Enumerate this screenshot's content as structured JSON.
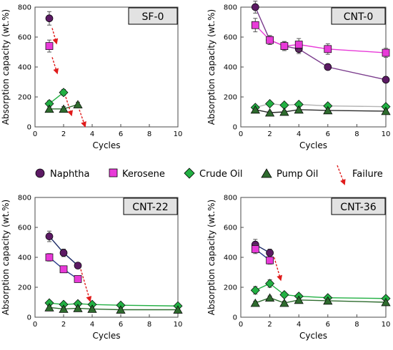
{
  "colors": {
    "naphtha": "#5c1a64",
    "kerosene": "#e83ad8",
    "crude_oil": "#22b043",
    "pump_oil": "#2e6b2e",
    "failure": "#e01b1b",
    "title_box": "#e2e2e2"
  },
  "legend": {
    "naphtha": "Naphtha",
    "kerosene": "Kerosene",
    "crude_oil": "Crude Oil",
    "pump_oil": "Pump Oil",
    "failure": "Failure"
  },
  "chart_data": [
    {
      "type": "line",
      "title": "SF-0",
      "xlabel": "Cycles",
      "ylabel": "Absorption capacity (wt.%)",
      "xlim": [
        0,
        10
      ],
      "ylim": [
        0,
        800
      ],
      "xticks": [
        0,
        2,
        4,
        6,
        8,
        10
      ],
      "yticks": [
        0,
        200,
        400,
        600,
        800
      ],
      "series": [
        {
          "name": "Naphtha",
          "key": "naphtha",
          "marker": "circle",
          "line": "#5c1a64",
          "x": [
            1
          ],
          "y": [
            725
          ],
          "err": [
            45
          ]
        },
        {
          "name": "Kerosene",
          "key": "kerosene",
          "marker": "square",
          "line": "#e83ad8",
          "x": [
            1
          ],
          "y": [
            540
          ],
          "err": [
            40
          ]
        },
        {
          "name": "Crude Oil",
          "key": "crude_oil",
          "marker": "diamond",
          "line": "#22b043",
          "x": [
            1,
            2
          ],
          "y": [
            155,
            230
          ],
          "err": [
            20,
            20
          ]
        },
        {
          "name": "Pump Oil",
          "key": "pump_oil",
          "marker": "triangle",
          "line": "#2e6b2e",
          "x": [
            1,
            2,
            3
          ],
          "y": [
            120,
            120,
            150
          ],
          "err": [
            15,
            15,
            15
          ]
        }
      ],
      "failures": [
        {
          "from": [
            1.2,
            660
          ],
          "to": [
            1.5,
            560
          ]
        },
        {
          "from": [
            1.2,
            465
          ],
          "to": [
            1.55,
            360
          ]
        },
        {
          "from": [
            2.15,
            200
          ],
          "to": [
            2.55,
            80
          ]
        },
        {
          "from": [
            3.1,
            115
          ],
          "to": [
            3.5,
            5
          ]
        }
      ]
    },
    {
      "type": "line",
      "title": "CNT-0",
      "xlabel": "Cycles",
      "ylabel": "Absorption capacity (wt.%)",
      "xlim": [
        0,
        10
      ],
      "ylim": [
        0,
        800
      ],
      "xticks": [
        0,
        2,
        4,
        6,
        8,
        10
      ],
      "yticks": [
        0,
        200,
        400,
        600,
        800
      ],
      "series": [
        {
          "name": "Naphtha",
          "key": "naphtha",
          "marker": "circle",
          "line": "#7a3b8c",
          "x": [
            1,
            2,
            3,
            4,
            6,
            10
          ],
          "y": [
            800,
            580,
            540,
            520,
            400,
            315
          ],
          "err": [
            40,
            30,
            30,
            30,
            20,
            20
          ]
        },
        {
          "name": "Kerosene",
          "key": "kerosene",
          "marker": "square",
          "line": "#e83ad8",
          "x": [
            1,
            2,
            3,
            4,
            6,
            10
          ],
          "y": [
            680,
            580,
            540,
            550,
            520,
            495
          ],
          "err": [
            45,
            30,
            30,
            40,
            35,
            30
          ]
        },
        {
          "name": "Crude Oil",
          "key": "crude_oil",
          "marker": "diamond",
          "line": "#b4b4b4",
          "x": [
            1,
            2,
            3,
            4,
            6,
            10
          ],
          "y": [
            130,
            155,
            145,
            150,
            140,
            135
          ],
          "err": [
            10,
            10,
            10,
            10,
            10,
            10
          ]
        },
        {
          "name": "Pump Oil",
          "key": "pump_oil",
          "marker": "triangle",
          "line": "#2a2a2a",
          "x": [
            1,
            2,
            3,
            4,
            6,
            10
          ],
          "y": [
            115,
            95,
            100,
            115,
            110,
            105
          ],
          "err": [
            10,
            10,
            10,
            10,
            10,
            10
          ]
        }
      ],
      "failures": []
    },
    {
      "type": "line",
      "title": "CNT-22",
      "xlabel": "Cycles",
      "ylabel": "Absorption capacity (wt.%)",
      "xlim": [
        0,
        10
      ],
      "ylim": [
        0,
        800
      ],
      "xticks": [
        0,
        2,
        4,
        6,
        8,
        10
      ],
      "yticks": [
        0,
        200,
        400,
        600,
        800
      ],
      "series": [
        {
          "name": "Naphtha",
          "key": "naphtha",
          "marker": "circle",
          "line": "#1c2a66",
          "x": [
            1,
            2,
            3
          ],
          "y": [
            540,
            430,
            345
          ],
          "err": [
            35,
            25,
            15
          ]
        },
        {
          "name": "Kerosene",
          "key": "kerosene",
          "marker": "square",
          "line": "#2a3a8c",
          "x": [
            1,
            2,
            3
          ],
          "y": [
            400,
            320,
            255
          ],
          "err": [
            25,
            20,
            15
          ]
        },
        {
          "name": "Crude Oil",
          "key": "crude_oil",
          "marker": "diamond",
          "line": "#22b043",
          "x": [
            1,
            2,
            3,
            4,
            6,
            10
          ],
          "y": [
            95,
            85,
            90,
            85,
            80,
            75
          ],
          "err": [
            10,
            10,
            10,
            10,
            10,
            10
          ]
        },
        {
          "name": "Pump Oil",
          "key": "pump_oil",
          "marker": "triangle",
          "line": "#2e6b2e",
          "x": [
            1,
            2,
            3,
            4,
            6,
            10
          ],
          "y": [
            65,
            55,
            60,
            55,
            50,
            50
          ],
          "err": [
            8,
            8,
            8,
            8,
            8,
            8
          ]
        }
      ],
      "failures": [
        {
          "from": [
            3.2,
            320
          ],
          "to": [
            3.85,
            110
          ]
        }
      ]
    },
    {
      "type": "line",
      "title": "CNT-36",
      "xlabel": "Cycles",
      "ylabel": "Absorption capacity (wt.%)",
      "xlim": [
        0,
        10
      ],
      "ylim": [
        0,
        800
      ],
      "xticks": [
        0,
        2,
        4,
        6,
        8,
        10
      ],
      "yticks": [
        0,
        200,
        400,
        600,
        800
      ],
      "series": [
        {
          "name": "Naphtha",
          "key": "naphtha",
          "marker": "circle",
          "line": "#1c2a66",
          "x": [
            1,
            2
          ],
          "y": [
            485,
            430
          ],
          "err": [
            35,
            25
          ]
        },
        {
          "name": "Kerosene",
          "key": "kerosene",
          "marker": "square",
          "line": "#2a3a8c",
          "x": [
            1,
            2
          ],
          "y": [
            455,
            380
          ],
          "err": [
            30,
            25
          ]
        },
        {
          "name": "Crude Oil",
          "key": "crude_oil",
          "marker": "diamond",
          "line": "#22b043",
          "x": [
            1,
            2,
            3,
            4,
            6,
            10
          ],
          "y": [
            180,
            225,
            150,
            140,
            130,
            125
          ],
          "err": [
            25,
            25,
            15,
            15,
            12,
            12
          ]
        },
        {
          "name": "Pump Oil",
          "key": "pump_oil",
          "marker": "triangle",
          "line": "#2e6b2e",
          "x": [
            1,
            2,
            3,
            4,
            6,
            10
          ],
          "y": [
            95,
            130,
            95,
            115,
            110,
            100
          ],
          "err": [
            12,
            12,
            12,
            12,
            12,
            12
          ]
        }
      ],
      "failures": [
        {
          "from": [
            2.3,
            400
          ],
          "to": [
            2.75,
            250
          ]
        }
      ]
    }
  ]
}
